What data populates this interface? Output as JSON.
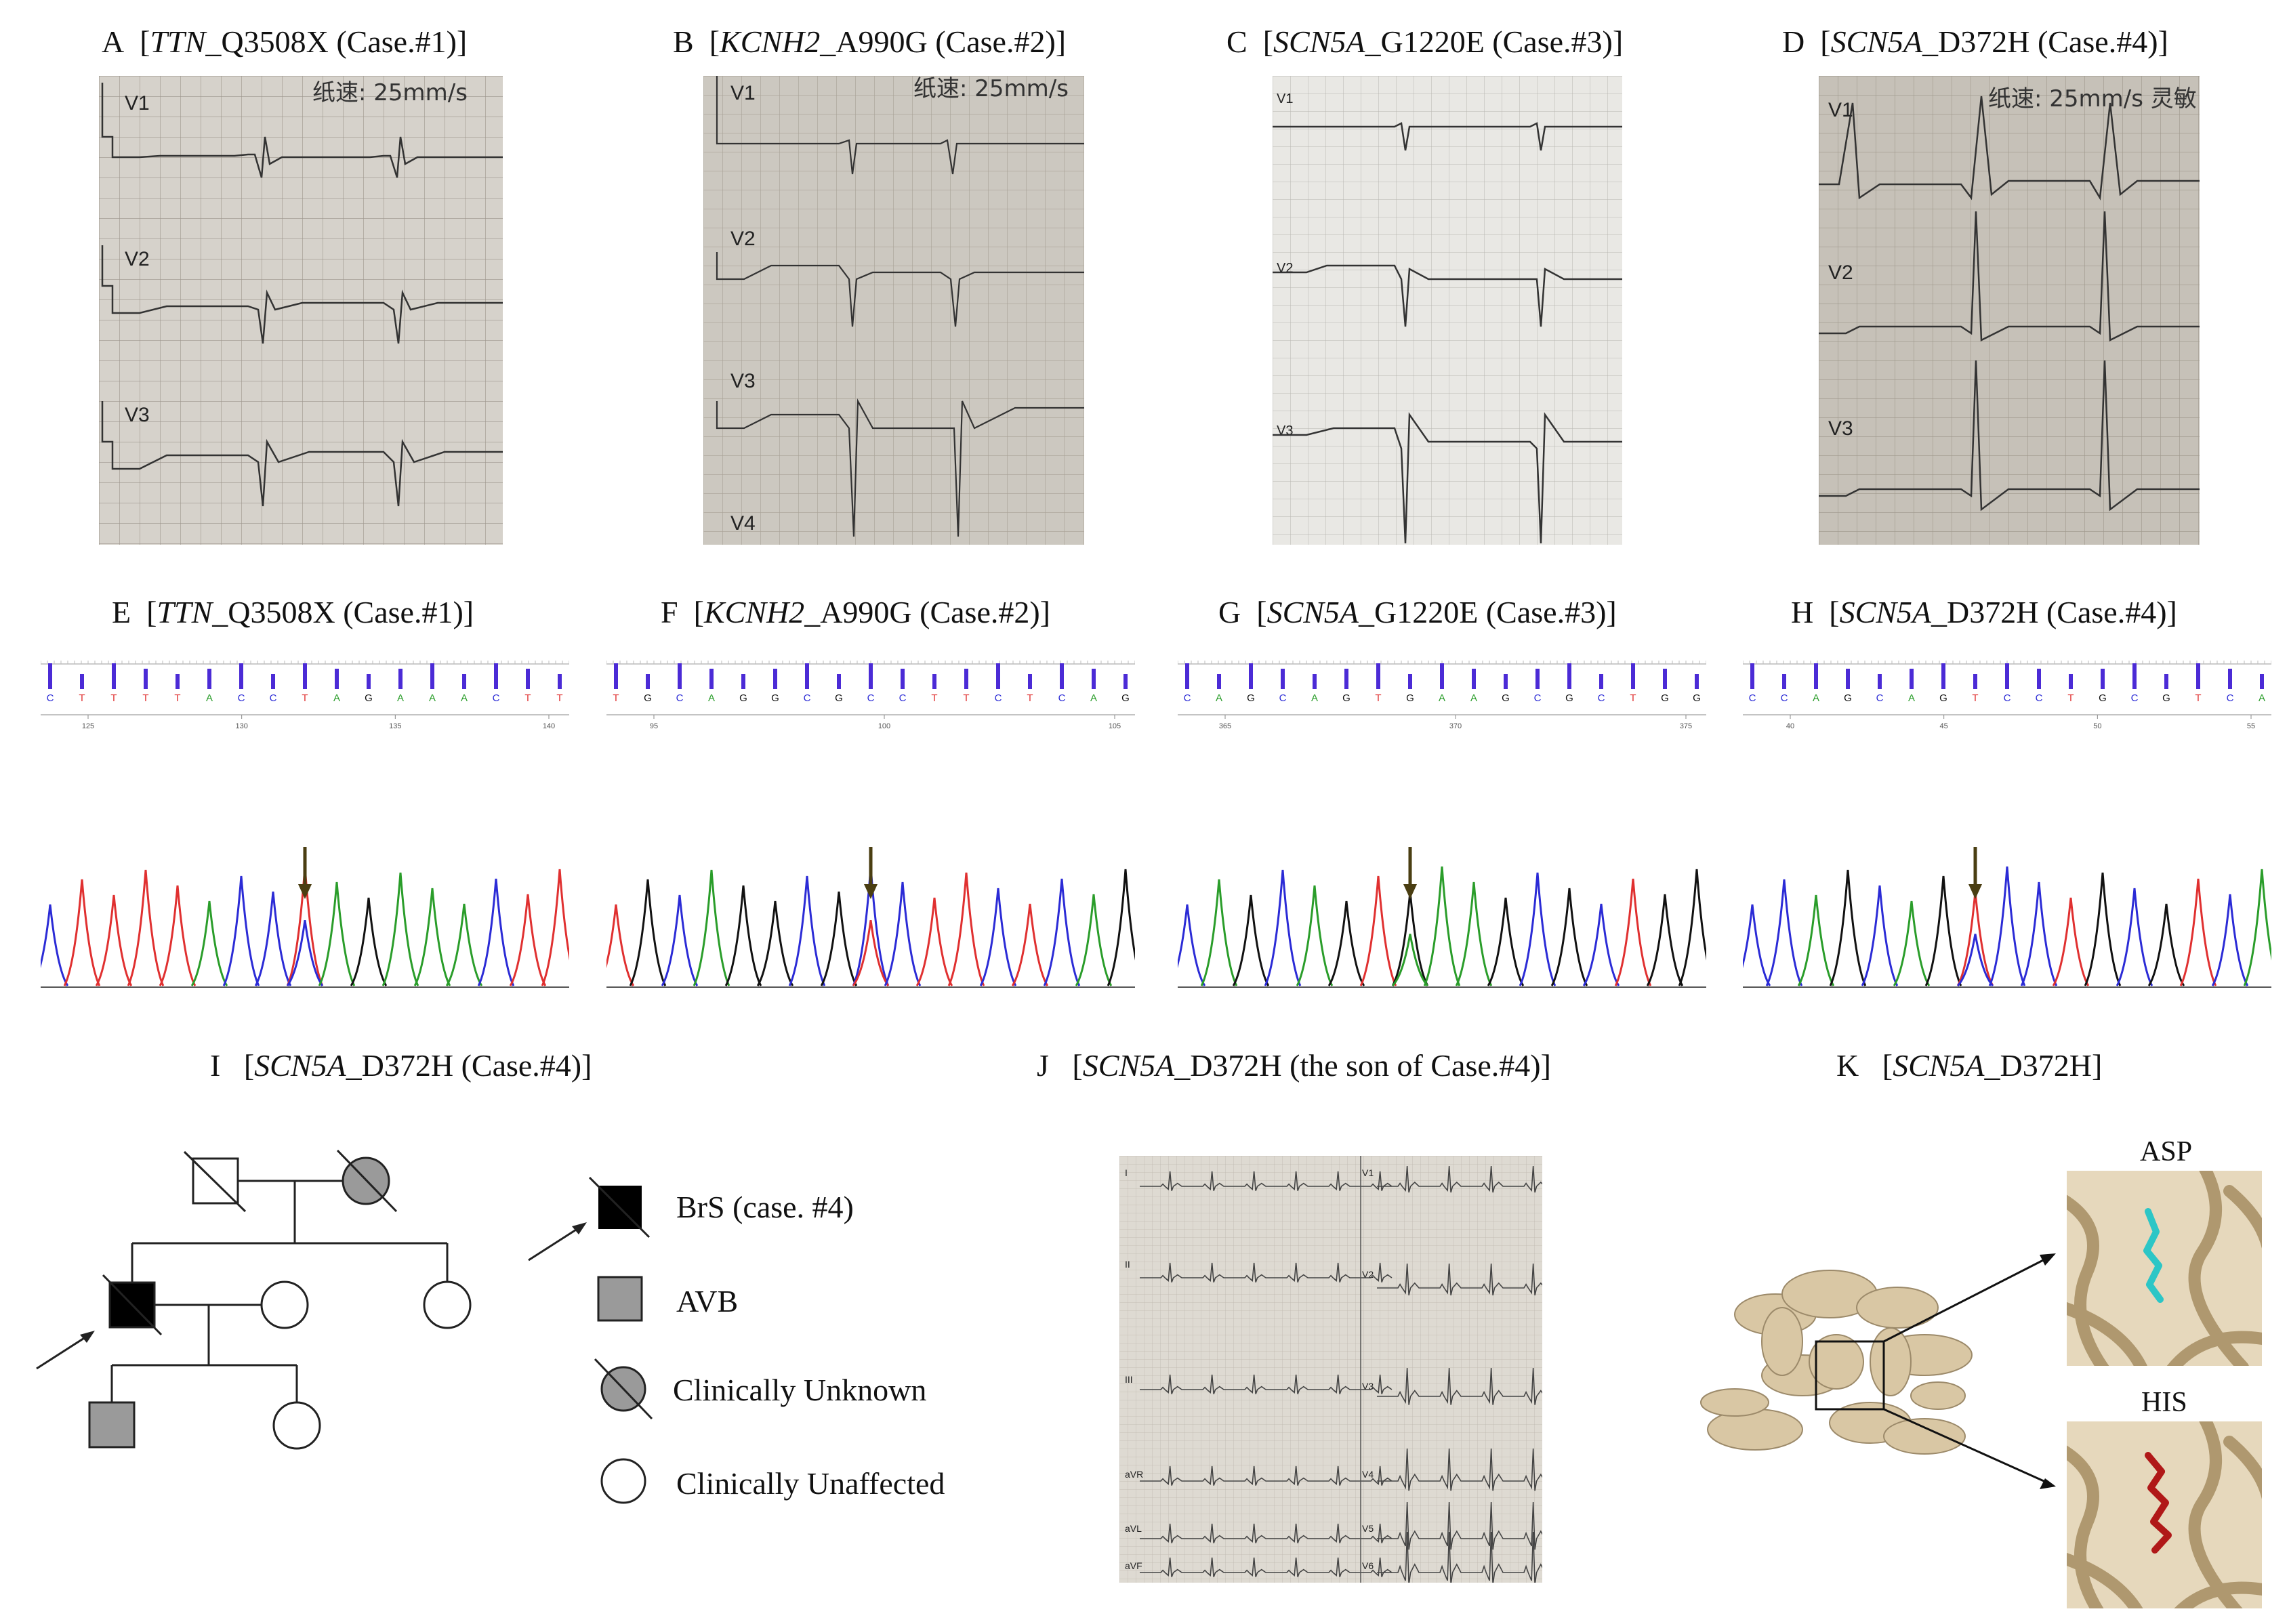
{
  "panels": {
    "A": {
      "letter": "A",
      "gene": "TTN",
      "variant": "_Q3508X (Case.#1)]"
    },
    "B": {
      "letter": "B",
      "gene": "KCNH2",
      "variant": "_A990G (Case.#2)]"
    },
    "C": {
      "letter": "C",
      "gene": "SCN5A",
      "variant": "_G1220E (Case.#3)]"
    },
    "D": {
      "letter": "D",
      "gene": "SCN5A",
      "variant": "_D372H (Case.#4)]"
    },
    "E": {
      "letter": "E",
      "gene": "TTN",
      "variant": "_Q3508X (Case.#1)]"
    },
    "F": {
      "letter": "F",
      "gene": "KCNH2",
      "variant": "_A990G (Case.#2)]"
    },
    "G": {
      "letter": "G",
      "gene": "SCN5A",
      "variant": "_G1220E (Case.#3)]"
    },
    "H": {
      "letter": "H",
      "gene": "SCN5A",
      "variant": "_D372H (Case.#4)]"
    },
    "I": {
      "letter": "I",
      "gene": "SCN5A",
      "variant": "_D372H (Case.#4)]"
    },
    "J": {
      "letter": "J",
      "gene": "SCN5A",
      "variant": "_D372H (the son of Case.#4)]"
    },
    "K": {
      "letter": "K",
      "gene": "SCN5A",
      "variant": "_D372H]"
    }
  },
  "ecg": {
    "A": {
      "leads": [
        "V1",
        "V2",
        "V3"
      ],
      "speed": "纸速: 25mm/s"
    },
    "B": {
      "leads": [
        "V1",
        "V2",
        "V3",
        "V4"
      ],
      "speed": "纸速: 25mm/s"
    },
    "C": {
      "leads": [
        "V1",
        "V2",
        "V3"
      ]
    },
    "D": {
      "leads": [
        "V1",
        "V2",
        "V3"
      ],
      "speed": "纸速: 25mm/s 灵敏"
    },
    "J": {
      "limb_leads": [
        "I",
        "II",
        "III",
        "aVR",
        "aVL",
        "aVF"
      ],
      "chest_leads": [
        "V1",
        "V2",
        "V3",
        "V4",
        "V5",
        "V6"
      ]
    }
  },
  "chromatograms": {
    "E": {
      "bases": [
        "C",
        "T",
        "T",
        "T",
        "T",
        "A",
        "C",
        "C",
        "T",
        "A",
        "G",
        "A",
        "A",
        "A",
        "C",
        "T",
        "T"
      ],
      "ticks": [
        "125",
        "130",
        "135",
        "140"
      ]
    },
    "F": {
      "bases": [
        "T",
        "G",
        "C",
        "A",
        "G",
        "G",
        "C",
        "G",
        "C",
        "C",
        "T",
        "T",
        "C",
        "T",
        "C",
        "A",
        "G"
      ],
      "ticks": [
        "95",
        "100",
        "105"
      ]
    },
    "G": {
      "bases": [
        "C",
        "A",
        "G",
        "C",
        "A",
        "G",
        "T",
        "G",
        "A",
        "A",
        "G",
        "C",
        "G",
        "C",
        "T",
        "G",
        "G"
      ],
      "ticks": [
        "365",
        "370",
        "375"
      ]
    },
    "H": {
      "bases": [
        "C",
        "C",
        "A",
        "G",
        "C",
        "A",
        "G",
        "T",
        "C",
        "C",
        "T",
        "G",
        "C",
        "G",
        "T",
        "C",
        "A"
      ],
      "ticks": [
        "40",
        "45",
        "50",
        "55"
      ]
    }
  },
  "legend": {
    "brs": "BrS (case. #4)",
    "avb": "AVB",
    "unknown": "Clinically Unknown",
    "unaffected": "Clinically Unaffected"
  },
  "protein": {
    "asp": "ASP",
    "his": "HIS"
  },
  "colors": {
    "A": "#2a9d2a",
    "C": "#2b2bd6",
    "G": "#111111",
    "T": "#e03030",
    "arrow": "#4a3e12",
    "asp": "#2cc6c6",
    "his": "#b01818",
    "protein": "#cdb896"
  }
}
